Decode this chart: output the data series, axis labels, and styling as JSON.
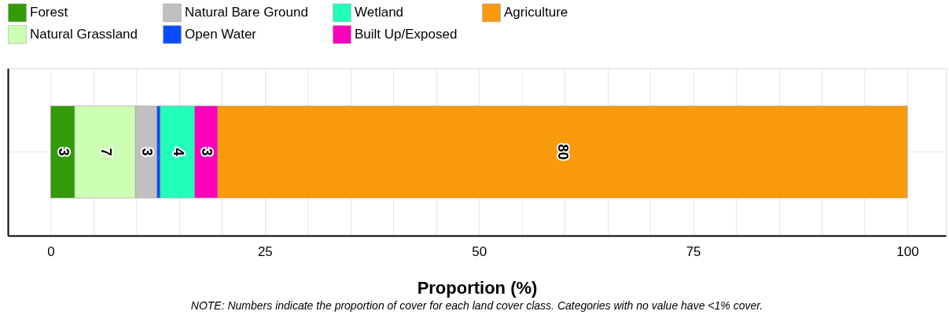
{
  "chart_data": {
    "type": "bar",
    "orientation": "horizontal",
    "stacked": true,
    "categories": [
      null
    ],
    "series": [
      {
        "name": "Forest",
        "color": "#339a08",
        "values": [
          2.8
        ],
        "value_labels": [
          "3"
        ]
      },
      {
        "name": "Natural Grassland",
        "color": "#ccffb4",
        "values": [
          7.1
        ],
        "value_labels": [
          "7"
        ]
      },
      {
        "name": "Natural Bare Ground",
        "color": "#c0c0c0",
        "values": [
          2.5
        ],
        "value_labels": [
          "3"
        ]
      },
      {
        "name": "Open Water",
        "color": "#0a4dff",
        "values": [
          0.4
        ],
        "value_labels": [
          null
        ]
      },
      {
        "name": "Wetland",
        "color": "#21ffbb",
        "values": [
          4.0
        ],
        "value_labels": [
          "4"
        ]
      },
      {
        "name": "Built Up/Exposed",
        "color": "#ff00bb",
        "values": [
          2.7
        ],
        "value_labels": [
          "3"
        ]
      },
      {
        "name": "Agriculture",
        "color": "#fa9a0d",
        "values": [
          80.5
        ],
        "value_labels": [
          "80"
        ]
      }
    ],
    "xlim": [
      -5,
      104.5
    ],
    "xticks": [
      0,
      {
        "value": 5,
        "label": null
      },
      {
        "value": 10,
        "label": null
      },
      {
        "value": 15,
        "label": null
      },
      {
        "value": 20,
        "label": null
      },
      25,
      {
        "value": 30,
        "label": null
      },
      {
        "value": 35,
        "label": null
      },
      {
        "value": 40,
        "label": null
      },
      {
        "value": 45,
        "label": null
      },
      50,
      {
        "value": 55,
        "label": null
      },
      {
        "value": 60,
        "label": null
      },
      {
        "value": 65,
        "label": null
      },
      {
        "value": 70,
        "label": null
      },
      75,
      {
        "value": 80,
        "label": null
      },
      {
        "value": 85,
        "label": null
      },
      {
        "value": 90,
        "label": null
      },
      {
        "value": 95,
        "label": null
      },
      100
    ],
    "xlabel": "Proportion (%)",
    "grid": true,
    "legend": "top",
    "annotations": [
      "NOTE: Numbers indicate the proportion of cover for each land cover class. Categories with no value have <1% cover."
    ]
  }
}
